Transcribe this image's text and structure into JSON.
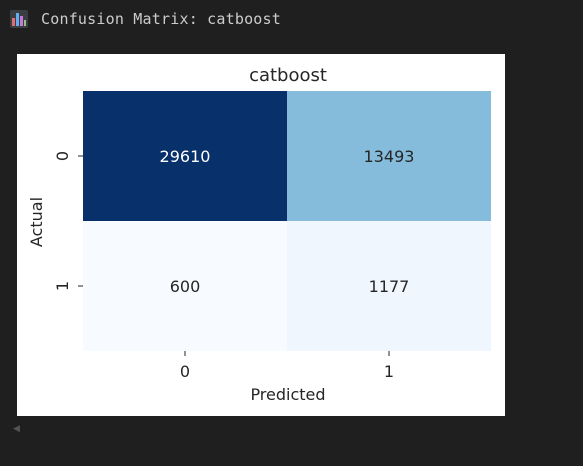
{
  "header": {
    "title": "Confusion Matrix: catboost",
    "icon": "bar-chart-icon"
  },
  "colors": {
    "page_background": "#1f1f1f",
    "figure_background": "#ffffff",
    "header_text": "#cccccc",
    "colormap": "Blues"
  },
  "chart_data": {
    "type": "heatmap",
    "title": "catboost",
    "xlabel": "Predicted",
    "ylabel": "Actual",
    "x_categories": [
      "0",
      "1"
    ],
    "y_categories": [
      "0",
      "1"
    ],
    "matrix": [
      [
        29610,
        13493
      ],
      [
        600,
        1177
      ]
    ],
    "annotations": [
      [
        "29610",
        "13493"
      ],
      [
        "600",
        "1177"
      ]
    ],
    "cell_colors": [
      [
        "#08306b",
        "#85bcdc"
      ],
      [
        "#f7fbff",
        "#f0f6fd"
      ]
    ],
    "annotation_colors": [
      [
        "#ffffff",
        "#262626"
      ],
      [
        "#262626",
        "#262626"
      ]
    ],
    "colorbar": false
  }
}
